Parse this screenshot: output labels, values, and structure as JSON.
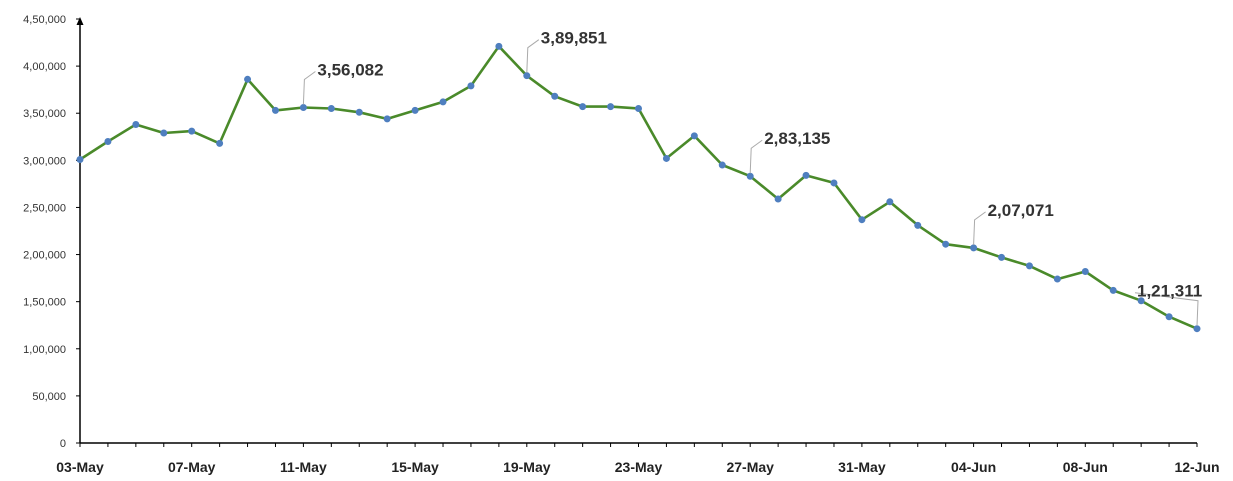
{
  "chart_data": {
    "type": "line",
    "title": "",
    "xlabel": "",
    "ylabel": "",
    "ylim": [
      0,
      450000
    ],
    "grid": false,
    "y_ticks": [
      "0",
      "50,000",
      "1,00,000",
      "1,50,000",
      "2,00,000",
      "2,50,000",
      "3,00,000",
      "3,50,000",
      "4,00,000",
      "4,50,000"
    ],
    "x_tick_labels": [
      "03-May",
      "07-May",
      "11-May",
      "15-May",
      "19-May",
      "23-May",
      "27-May",
      "31-May",
      "04-Jun",
      "08-Jun",
      "12-Jun"
    ],
    "x": [
      "03-May",
      "04-May",
      "05-May",
      "06-May",
      "07-May",
      "08-May",
      "09-May",
      "10-May",
      "11-May",
      "12-May",
      "13-May",
      "14-May",
      "15-May",
      "16-May",
      "17-May",
      "18-May",
      "19-May",
      "20-May",
      "21-May",
      "22-May",
      "23-May",
      "24-May",
      "25-May",
      "26-May",
      "27-May",
      "28-May",
      "29-May",
      "30-May",
      "31-May",
      "01-Jun",
      "02-Jun",
      "03-Jun",
      "04-Jun",
      "05-Jun",
      "06-Jun",
      "07-Jun",
      "08-Jun",
      "09-Jun",
      "10-Jun",
      "11-Jun",
      "12-Jun"
    ],
    "series": [
      {
        "values": [
          300900,
          320000,
          338000,
          329000,
          331000,
          318000,
          386000,
          353000,
          356082,
          355000,
          351000,
          344000,
          353000,
          362000,
          379000,
          421000,
          389851,
          368000,
          357000,
          357000,
          355000,
          302000,
          326000,
          295000,
          283135,
          259000,
          284000,
          276000,
          237000,
          256000,
          231000,
          211000,
          207071,
          197000,
          188000,
          174000,
          182000,
          162000,
          151000,
          134000,
          121311
        ],
        "line_color": "#4a8a2a",
        "marker_color": "#4f7fbf"
      }
    ],
    "annotations": [
      {
        "x": "11-May",
        "text": "3,56,082"
      },
      {
        "x": "19-May",
        "text": "3,89,851"
      },
      {
        "x": "27-May",
        "text": "2,83,135"
      },
      {
        "x": "04-Jun",
        "text": "2,07,071"
      },
      {
        "x": "12-Jun",
        "text": "1,21,311"
      }
    ]
  }
}
